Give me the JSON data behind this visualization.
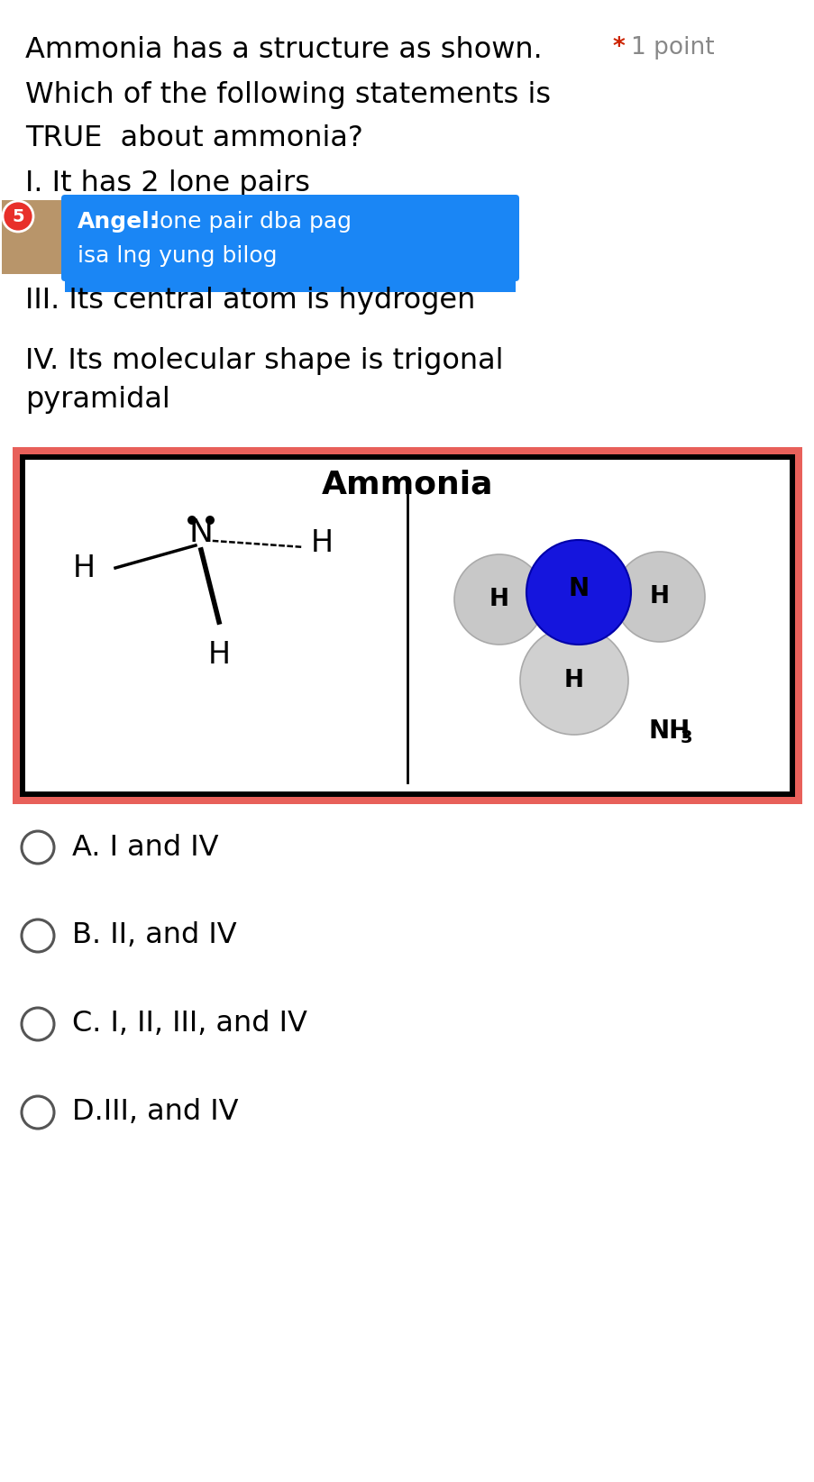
{
  "bg_color": "#ffffff",
  "title_text": "Ammonia has a structure as shown.",
  "point_star": "*",
  "point_label": "1 point",
  "line1": "Which of the following statements is",
  "line2": "TRUE  about ammonia?",
  "statement_I": "I. It has 2 lone pairs",
  "statement_III": "III. Its central atom is hydrogen",
  "statement_IV_a": "IV. Its molecular shape is trigonal",
  "statement_IV_b": "pyramidal",
  "angel_bold": "Angel:",
  "angel_rest": " lone pair dba pag",
  "angel_line2": "isa lng yung bilog",
  "avatar_badge": "5",
  "choices": [
    "A. I and IV",
    "B. II, and IV",
    "C. I, II, III, and IV",
    "D.III, and IV"
  ],
  "bubble_bg": "#1a86f5",
  "frame_outer_color": "#e8605a",
  "frame_inner_color": "#000000",
  "ammonia_title": "Ammonia",
  "radio_color": "#555555",
  "main_font_size": 23,
  "choice_font_size": 23,
  "point_font_size": 19,
  "avatar_badge_color": "#e8302a",
  "nh3_font_size": 20
}
